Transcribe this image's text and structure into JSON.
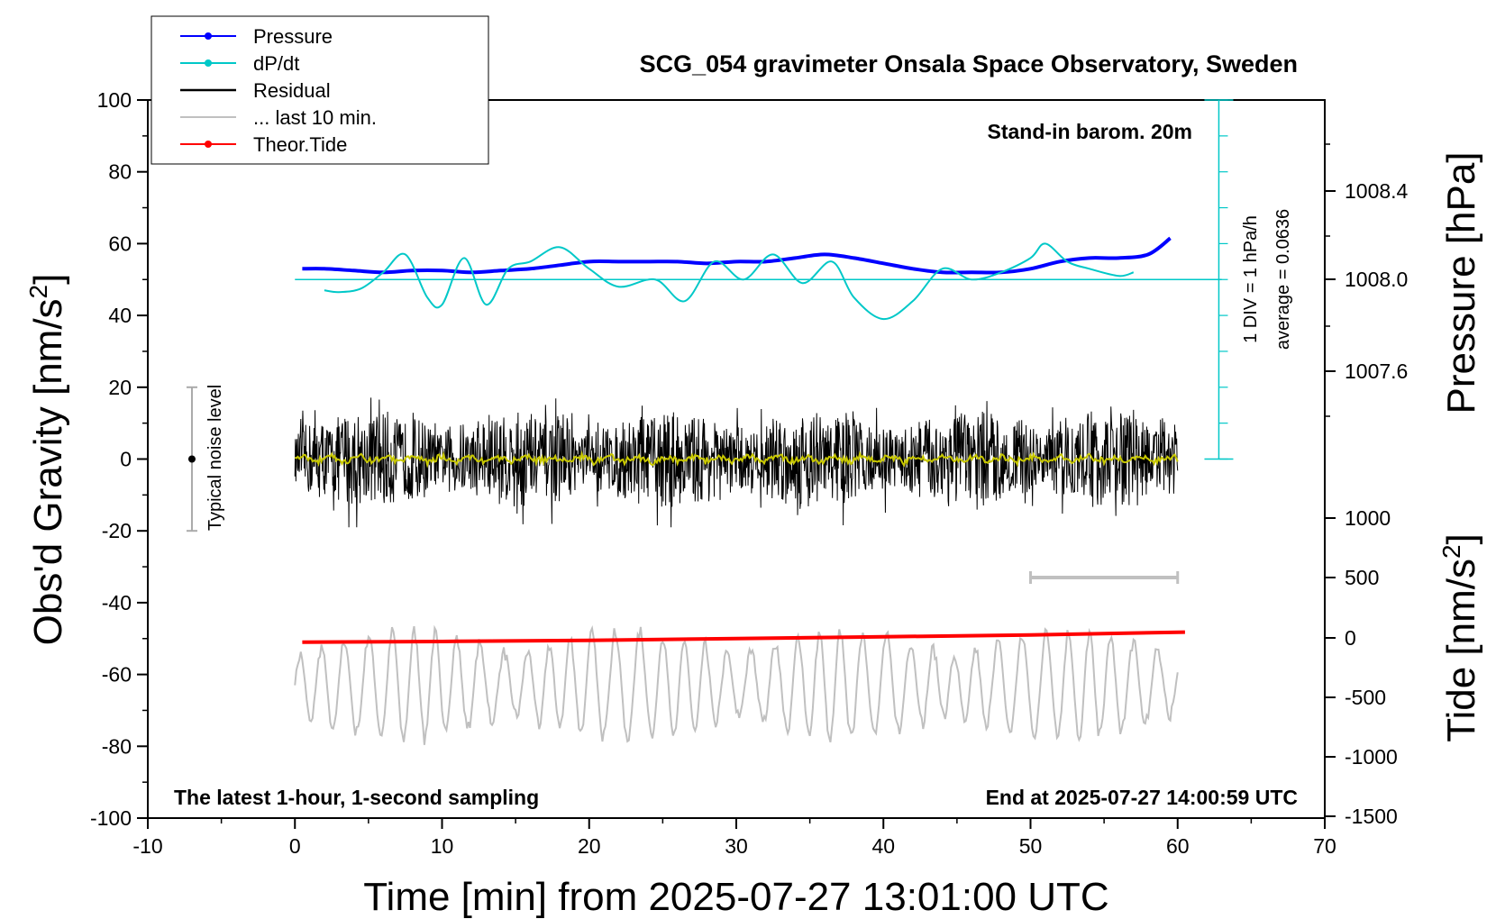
{
  "title": "SCG_054 gravimeter Onsala Space Observatory, Sweden",
  "note_top_right": "Stand-in barom. 20m",
  "note_bottom_left": "The latest 1-hour, 1-second sampling",
  "note_bottom_right": "End at 2025-07-27 14:00:59 UTC",
  "x_axis_label": "Time [min] from 2025-07-27 13:01:00 UTC",
  "y_left_label": "Obs'd Gravity [nm/s",
  "y_left_label_sup": "2",
  "y_left_label_close": "]",
  "y_right_pressure_label": "Pressure [hPa]",
  "y_right_tide_label": "Tide [nm/s",
  "y_right_tide_label_sup": "2",
  "y_right_tide_label_close": "]",
  "noise_label": "Typical noise level",
  "scale_label_1": "1 DIV = 1 hPa/h",
  "scale_label_2": "average = 0.0636",
  "legend": [
    {
      "label": "Pressure",
      "color": "#0000ff",
      "marker": true
    },
    {
      "label": "dP/dt",
      "color": "#00c8c8",
      "marker": true
    },
    {
      "label": "Residual",
      "color": "#000000",
      "marker": false
    },
    {
      "label": "... last 10 min.",
      "color": "#c0c0c0",
      "marker": false
    },
    {
      "label": "Theor.Tide",
      "color": "#ff0000",
      "marker": true
    }
  ],
  "colors": {
    "pressure": "#0000ff",
    "dpdt": "#00c8c8",
    "residual": "#000000",
    "residual_smooth": "#c8c800",
    "last10": "#c0c0c0",
    "tide": "#ff0000"
  },
  "chart_data": {
    "type": "line",
    "title": "SCG_054 gravimeter Onsala Space Observatory, Sweden",
    "xlabel": "Time [min] from 2025-07-27 13:01:00 UTC",
    "ylabel": "Obs'd Gravity [nm/s2]",
    "xlim": [
      -10,
      70
    ],
    "ylim": [
      -100,
      100
    ],
    "x_ticks": [
      -10,
      0,
      10,
      20,
      30,
      40,
      50,
      60,
      70
    ],
    "y_ticks": [
      -100,
      -80,
      -60,
      -40,
      -20,
      0,
      20,
      40,
      60,
      80,
      100
    ],
    "pressure_axis": {
      "label": "Pressure [hPa]",
      "ticks": [
        "1008.4",
        "1008.0",
        "1007.6"
      ]
    },
    "tide_axis": {
      "label": "Tide [nm/s2]",
      "ticks": [
        "1000",
        "500",
        "0",
        "-500",
        "-1000",
        "-1500"
      ]
    },
    "series": [
      {
        "name": "Pressure",
        "x": [
          0.5,
          2,
          4,
          6,
          8,
          10,
          12,
          14,
          16,
          18,
          20,
          22,
          24,
          26,
          28,
          30,
          32,
          34,
          36,
          38,
          40,
          42,
          44,
          46,
          48,
          50,
          52,
          54,
          56,
          58,
          59.5
        ],
        "y": [
          53,
          53,
          52.5,
          52,
          52.5,
          52.5,
          52,
          52.5,
          53,
          54,
          55,
          55,
          55,
          55,
          54.5,
          55,
          55,
          56,
          57,
          56,
          54.5,
          53,
          52,
          52,
          52,
          53,
          55,
          56,
          56,
          57,
          61.5
        ]
      },
      {
        "name": "dP/dt",
        "x": [
          2,
          3,
          4.5,
          6,
          7.5,
          9,
          10,
          11.5,
          13,
          14.5,
          16,
          18,
          20,
          22,
          24.5,
          26.5,
          28.5,
          30.5,
          32.5,
          34.5,
          36.5,
          38,
          40,
          42,
          44,
          46,
          48,
          50,
          51,
          52.5,
          54,
          56,
          57
        ],
        "y": [
          47,
          46.5,
          47.5,
          52,
          57,
          45,
          43,
          56,
          43,
          53,
          55,
          59,
          53,
          48,
          50,
          44,
          55,
          50,
          57,
          49,
          55,
          45,
          39,
          44,
          53,
          50,
          52,
          56,
          60,
          55,
          53,
          51,
          52
        ]
      },
      {
        "name": "Residual",
        "x": [
          0,
          60
        ],
        "y": [
          0,
          0
        ],
        "note": "1-second noisy residual, roughly within -18 to 18"
      },
      {
        "name": "... last 10 min.",
        "x": [
          0,
          60
        ],
        "y": [
          -63,
          -63
        ],
        "note": "oscillating grey trace roughly between -80 and -50"
      },
      {
        "name": "Theor.Tide",
        "x": [
          0.5,
          10,
          20,
          30,
          40,
          50,
          60.5
        ],
        "y": [
          -51,
          -50.8,
          -50.5,
          -50.0,
          -49.5,
          -49.0,
          -48.2
        ]
      }
    ],
    "noise_level": {
      "x": -7,
      "range": [
        -20,
        20
      ]
    },
    "last10_bar": {
      "x": [
        50,
        60
      ],
      "y": -33
    },
    "dpdt_baseline": 50
  }
}
